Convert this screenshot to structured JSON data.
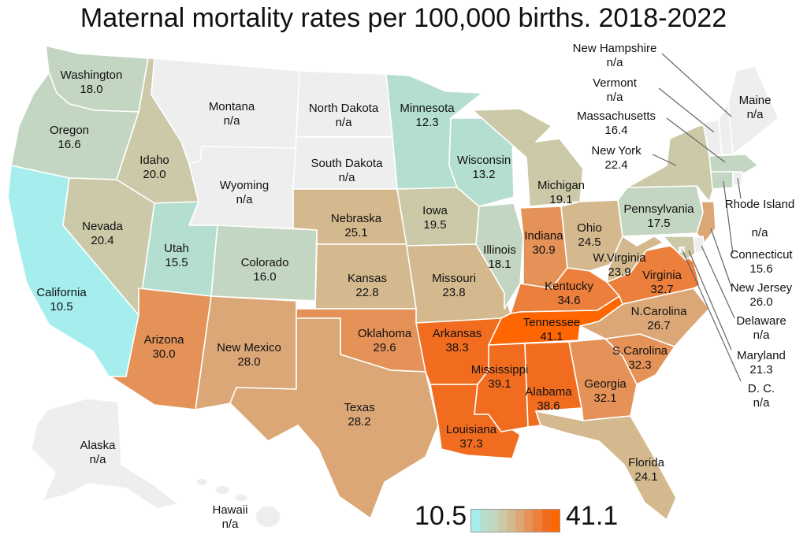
{
  "title": "Maternal mortality rates per 100,000 births. 2018-2022",
  "legend": {
    "min": "10.5",
    "max": "41.1",
    "colors": [
      "#a6eeee",
      "#b4dfd0",
      "#c3d6c1",
      "#ccc9a8",
      "#d4b98e",
      "#dca776",
      "#e49258",
      "#ec7f3c",
      "#f26c20",
      "#ff6500"
    ]
  },
  "color_na": "#eeeeee",
  "states": {
    "washington": {
      "name": "Washington",
      "value": "18.0"
    },
    "oregon": {
      "name": "Oregon",
      "value": "16.6"
    },
    "california": {
      "name": "California",
      "value": "10.5"
    },
    "idaho": {
      "name": "Idaho",
      "value": "20.0"
    },
    "nevada": {
      "name": "Nevada",
      "value": "20.4"
    },
    "montana": {
      "name": "Montana",
      "value": "n/a"
    },
    "wyoming": {
      "name": "Wyoming",
      "value": "n/a"
    },
    "utah": {
      "name": "Utah",
      "value": "15.5"
    },
    "arizona": {
      "name": "Arizona",
      "value": "30.0"
    },
    "colorado": {
      "name": "Colorado",
      "value": "16.0"
    },
    "new_mexico": {
      "name": "New Mexico",
      "value": "28.0"
    },
    "north_dakota": {
      "name": "North Dakota",
      "value": "n/a"
    },
    "south_dakota": {
      "name": "South Dakota",
      "value": "n/a"
    },
    "nebraska": {
      "name": "Nebraska",
      "value": "25.1"
    },
    "kansas": {
      "name": "Kansas",
      "value": "22.8"
    },
    "oklahoma": {
      "name": "Oklahoma",
      "value": "29.6"
    },
    "texas": {
      "name": "Texas",
      "value": "28.2"
    },
    "minnesota": {
      "name": "Minnesota",
      "value": "12.3"
    },
    "iowa": {
      "name": "Iowa",
      "value": "19.5"
    },
    "missouri": {
      "name": "Missouri",
      "value": "23.8"
    },
    "arkansas": {
      "name": "Arkansas",
      "value": "38.3"
    },
    "louisiana": {
      "name": "Louisiana",
      "value": "37.3"
    },
    "wisconsin": {
      "name": "Wisconsin",
      "value": "13.2"
    },
    "illinois": {
      "name": "Illinois",
      "value": "18.1"
    },
    "michigan": {
      "name": "Michigan",
      "value": "19.1"
    },
    "indiana": {
      "name": "Indiana",
      "value": "30.9"
    },
    "ohio": {
      "name": "Ohio",
      "value": "24.5"
    },
    "kentucky": {
      "name": "Kentucky",
      "value": "34.6"
    },
    "tennessee": {
      "name": "Tennessee",
      "value": "41.1"
    },
    "mississippi": {
      "name": "Mississippi",
      "value": "39.1"
    },
    "alabama": {
      "name": "Alabama",
      "value": "38.6"
    },
    "georgia": {
      "name": "Georgia",
      "value": "32.1"
    },
    "florida": {
      "name": "Florida",
      "value": "24.1"
    },
    "south_carolina": {
      "name": "S.Carolina",
      "value": "32.3"
    },
    "north_carolina": {
      "name": "N.Carolina",
      "value": "26.7"
    },
    "virginia": {
      "name": "Virginia",
      "value": "32.7"
    },
    "west_virginia": {
      "name": "W.Virginia",
      "value": "23.9"
    },
    "pennsylvania": {
      "name": "Pennsylvania",
      "value": "17.5"
    },
    "new_york": {
      "name": "New York",
      "value": "22.4"
    },
    "maine": {
      "name": "Maine",
      "value": "n/a"
    },
    "new_hampshire": {
      "name": "New Hampshire",
      "value": "n/a"
    },
    "vermont": {
      "name": "Vermont",
      "value": "n/a"
    },
    "massachusetts": {
      "name": "Massachusetts",
      "value": "16.4"
    },
    "rhode_island": {
      "name": "Rhode Island",
      "value": "n/a"
    },
    "connecticut": {
      "name": "Connecticut",
      "value": "15.6"
    },
    "new_jersey": {
      "name": "New Jersey",
      "value": "26.0"
    },
    "delaware": {
      "name": "Delaware",
      "value": "n/a"
    },
    "maryland": {
      "name": "Maryland",
      "value": "21.3"
    },
    "dc": {
      "name": "D. C.",
      "value": "n/a"
    },
    "alaska": {
      "name": "Alaska",
      "value": "n/a"
    },
    "hawaii": {
      "name": "Hawaii",
      "value": "n/a"
    }
  }
}
